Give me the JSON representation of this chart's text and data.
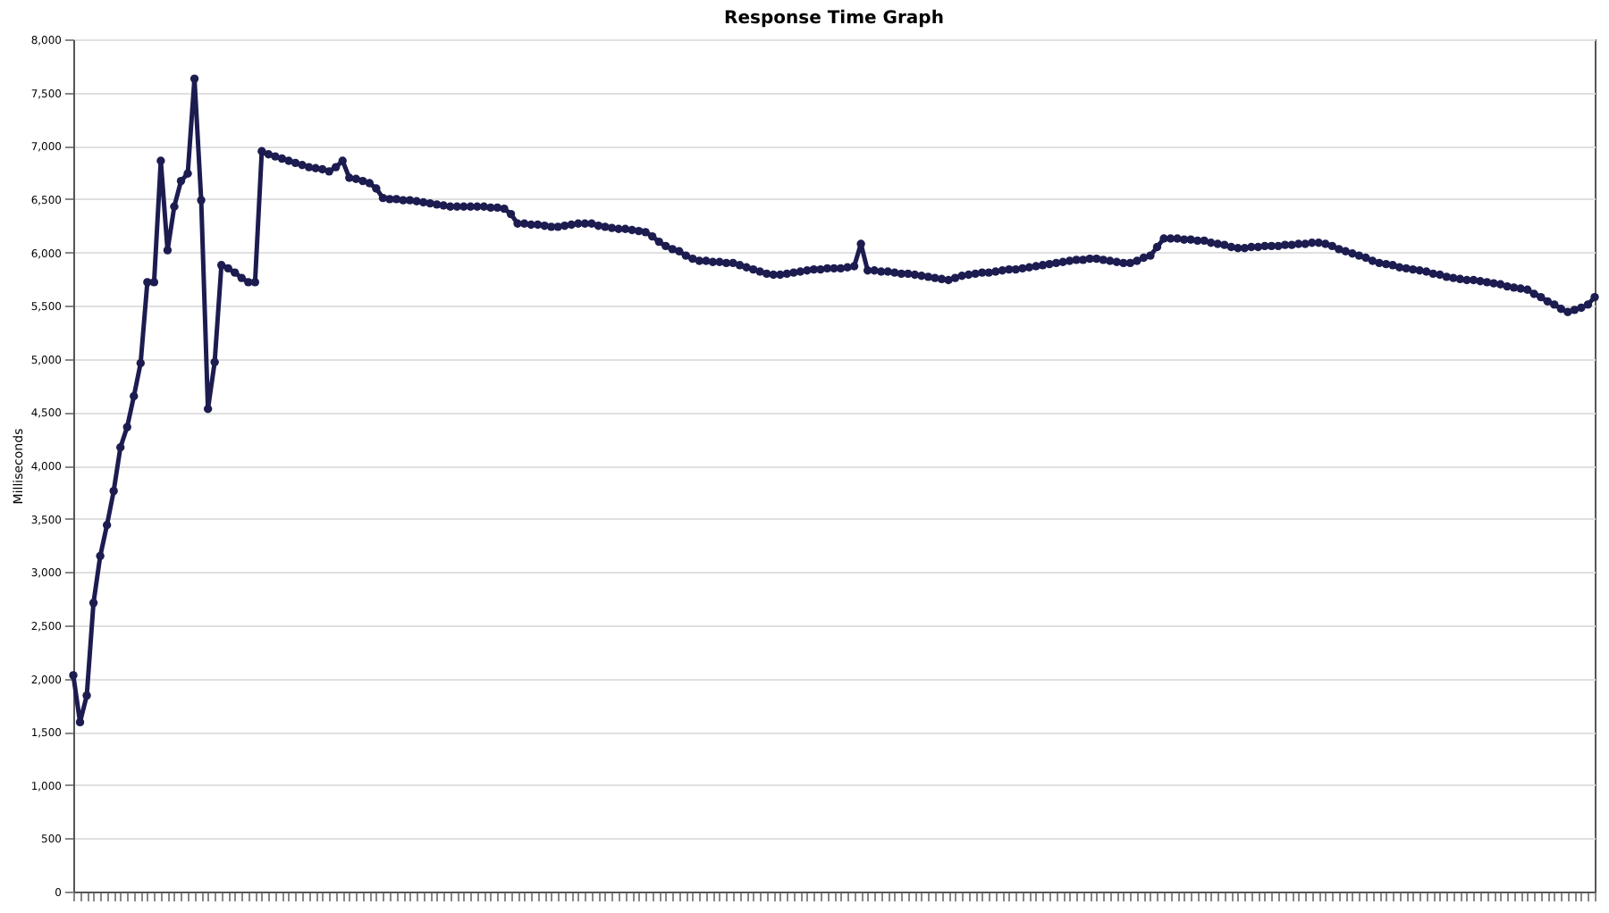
{
  "chart_data": {
    "type": "line",
    "title": "Response Time Graph",
    "ylabel": "Milliseconds",
    "categories": [
      null,
      null,
      null,
      null,
      null,
      null,
      null,
      null,
      null,
      null,
      null,
      null,
      null,
      null,
      null,
      null,
      null,
      null,
      null,
      null,
      null,
      null,
      null,
      null,
      null,
      null,
      null,
      null,
      null,
      null,
      null,
      null,
      null,
      null,
      null,
      null,
      null,
      null,
      null,
      null,
      null,
      null,
      null,
      null,
      null,
      null,
      null,
      null,
      null,
      null,
      null,
      null,
      null,
      null,
      null,
      null,
      null,
      null,
      null,
      null,
      null,
      null,
      null,
      null,
      null,
      null,
      null,
      null,
      null,
      null,
      null,
      null,
      null,
      null,
      null,
      null,
      null,
      null,
      null,
      null,
      null,
      null,
      null,
      null,
      null,
      null,
      null,
      null,
      null,
      null,
      null,
      null,
      null,
      null,
      null,
      null,
      null,
      null,
      null,
      null,
      null,
      null,
      null,
      null,
      null,
      null,
      null,
      null,
      null,
      null,
      null,
      null,
      null,
      null,
      null,
      null,
      null,
      null,
      null,
      null,
      null,
      null,
      null,
      null,
      null,
      null,
      null,
      null,
      null,
      null,
      null,
      null,
      null,
      null,
      null,
      null,
      null,
      null,
      null,
      null,
      null,
      null,
      null,
      null,
      null,
      null,
      null,
      null,
      null,
      null,
      null,
      null,
      null,
      null,
      null,
      null,
      null,
      null,
      null,
      null,
      null,
      null,
      null,
      null,
      null,
      null,
      null,
      null,
      null,
      null,
      null,
      null,
      null,
      null,
      null,
      null,
      null,
      null,
      null,
      null,
      null,
      null,
      null,
      null,
      null,
      null,
      null,
      null,
      null,
      null,
      null,
      null,
      null,
      null,
      null,
      null,
      null,
      null,
      null,
      null,
      null,
      null,
      null,
      null,
      null,
      null,
      null,
      null,
      null,
      null,
      null,
      null,
      null,
      null,
      null,
      null,
      null,
      null,
      null,
      null,
      null,
      null,
      null,
      null,
      null,
      null,
      null
    ],
    "series": [
      {
        "color": "#1c1c50",
        "values": [
          2030,
          1590,
          1840,
          2710,
          3150,
          3440,
          3760,
          4170,
          4360,
          4650,
          4960,
          5720,
          5720,
          6860,
          6020,
          6430,
          6670,
          6740,
          7630,
          6490,
          4530,
          4970,
          5880,
          5850,
          5810,
          5760,
          5720,
          5720,
          6950,
          6920,
          6900,
          6880,
          6860,
          6840,
          6820,
          6800,
          6790,
          6780,
          6760,
          6800,
          6860,
          6700,
          6690,
          6670,
          6650,
          6600,
          6510,
          6500,
          6500,
          6490,
          6490,
          6480,
          6470,
          6460,
          6450,
          6440,
          6430,
          6430,
          6430,
          6430,
          6430,
          6430,
          6420,
          6420,
          6410,
          6360,
          6270,
          6270,
          6260,
          6260,
          6250,
          6240,
          6240,
          6250,
          6260,
          6270,
          6270,
          6270,
          6250,
          6240,
          6230,
          6220,
          6220,
          6210,
          6200,
          6190,
          6150,
          6100,
          6060,
          6030,
          6010,
          5970,
          5940,
          5920,
          5920,
          5910,
          5910,
          5900,
          5900,
          5880,
          5860,
          5840,
          5820,
          5800,
          5790,
          5790,
          5800,
          5810,
          5820,
          5830,
          5840,
          5840,
          5850,
          5850,
          5850,
          5860,
          5870,
          6080,
          5830,
          5830,
          5820,
          5820,
          5810,
          5800,
          5800,
          5790,
          5780,
          5770,
          5760,
          5750,
          5740,
          5760,
          5780,
          5790,
          5800,
          5810,
          5810,
          5820,
          5830,
          5840,
          5840,
          5850,
          5860,
          5870,
          5880,
          5890,
          5900,
          5910,
          5920,
          5930,
          5930,
          5940,
          5940,
          5930,
          5920,
          5910,
          5900,
          5900,
          5920,
          5950,
          5970,
          6050,
          6130,
          6130,
          6130,
          6120,
          6120,
          6110,
          6110,
          6090,
          6080,
          6070,
          6050,
          6040,
          6040,
          6050,
          6050,
          6060,
          6060,
          6060,
          6070,
          6070,
          6080,
          6080,
          6090,
          6090,
          6080,
          6060,
          6030,
          6010,
          5990,
          5970,
          5950,
          5920,
          5900,
          5890,
          5880,
          5860,
          5850,
          5840,
          5830,
          5820,
          5800,
          5790,
          5770,
          5760,
          5750,
          5740,
          5740,
          5730,
          5720,
          5710,
          5700,
          5680,
          5670,
          5660,
          5650,
          5610,
          5580,
          5540,
          5510,
          5470,
          5440,
          5460,
          5480,
          5510,
          5580
        ]
      }
    ],
    "ylim": [
      0,
      8000
    ],
    "yticks": [
      0,
      500,
      {
        "value": 1000,
        "label": "1,000"
      },
      {
        "value": 1500,
        "label": "1,500"
      },
      {
        "value": 2000,
        "label": "2,000"
      },
      {
        "value": 2500,
        "label": "2,500"
      },
      {
        "value": 3000,
        "label": "3,000"
      },
      {
        "value": 3500,
        "label": "3,500"
      },
      {
        "value": 4000,
        "label": "4,000"
      },
      {
        "value": 4500,
        "label": "4,500"
      },
      {
        "value": 5000,
        "label": "5,000"
      },
      {
        "value": 5500,
        "label": "5,500"
      },
      {
        "value": 6000,
        "label": "6,000"
      },
      {
        "value": 6500,
        "label": "6,500"
      },
      {
        "value": 7000,
        "label": "7,000"
      },
      {
        "value": 7500,
        "label": "7,500"
      },
      {
        "value": 8000,
        "label": "8,000"
      }
    ],
    "grid": "y",
    "marker": "circle",
    "line_style": "solid",
    "legend": false
  }
}
